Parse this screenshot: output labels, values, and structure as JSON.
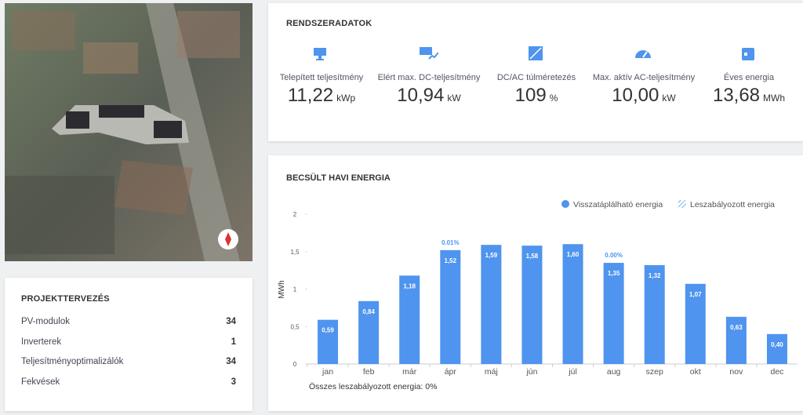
{
  "system": {
    "title": "RENDSZERADATOK",
    "items": [
      {
        "label": "Telepített teljesítmény",
        "value": "11,22",
        "unit": "kWp"
      },
      {
        "label": "Elért max. DC-teljesítmény",
        "value": "10,94",
        "unit": "kW"
      },
      {
        "label": "DC/AC túlméretezés",
        "value": "109",
        "unit": "%"
      },
      {
        "label": "Max. aktív AC-teljesítmény",
        "value": "10,00",
        "unit": "kW"
      },
      {
        "label": "Éves energia",
        "value": "13,68",
        "unit": "MWh"
      }
    ]
  },
  "project": {
    "title": "PROJEKTTERVEZÉS",
    "rows": [
      [
        "PV-modulok",
        "34"
      ],
      [
        "Inverterek",
        "1"
      ],
      [
        "Teljesítményoptimalizálók",
        "34"
      ],
      [
        "Fekvések",
        "3"
      ]
    ]
  },
  "chart_data": {
    "type": "bar",
    "title": "BECSÜLT HAVI ENERGIA",
    "y_label": "MWh",
    "categories": [
      "jan",
      "feb",
      "már",
      "ápr",
      "máj",
      "jún",
      "júl",
      "aug",
      "szep",
      "okt",
      "nov",
      "dec"
    ],
    "series": [
      {
        "name": "Visszatáplálható energia",
        "color": "#4f94ee",
        "values": [
          0.59,
          0.84,
          1.18,
          1.52,
          1.59,
          1.58,
          1.6,
          1.35,
          1.32,
          1.07,
          0.63,
          0.4
        ],
        "value_labels": [
          "0,59",
          "0,84",
          "1,18",
          "1,52",
          "1,59",
          "1,58",
          "1,60",
          "1,35",
          "1,32",
          "1,07",
          "0,63",
          "0,40"
        ]
      },
      {
        "name": "Leszabályozott energia",
        "color": "#4f94ee",
        "pattern": "hatch",
        "percent_values": [
          null,
          null,
          null,
          0.01,
          null,
          null,
          null,
          0,
          null,
          null,
          null,
          null
        ],
        "percent_labels": [
          null,
          null,
          null,
          "0.01%",
          null,
          null,
          null,
          "0.00%",
          null,
          null,
          null,
          null
        ]
      }
    ],
    "ylim": [
      0,
      2
    ],
    "yticks": [
      0,
      {
        "value": 0.5,
        "label": "0,5"
      },
      1,
      {
        "value": 1.5,
        "label": "1,5"
      },
      2
    ],
    "legend": "top-right",
    "footnote": "Összes leszabályozott energia: 0%"
  }
}
